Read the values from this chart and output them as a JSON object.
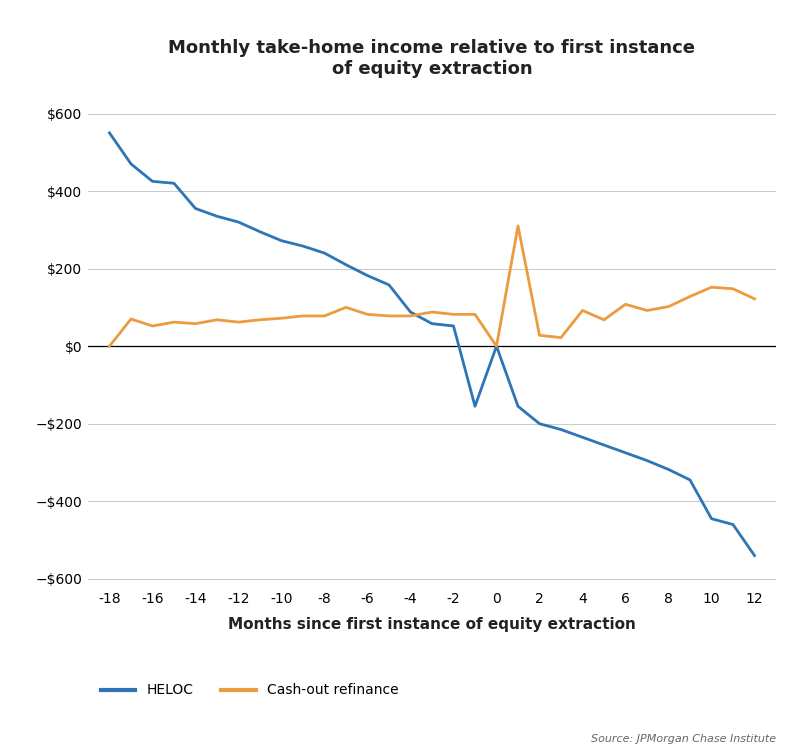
{
  "title": "Monthly take-home income relative to first instance\nof equity extraction",
  "xlabel": "Months since first instance of equity extraction",
  "heloc_x": [
    -18,
    -17,
    -16,
    -15,
    -14,
    -13,
    -12,
    -11,
    -10,
    -9,
    -8,
    -7,
    -6,
    -5,
    -4,
    -3,
    -2,
    -1,
    0,
    1,
    2,
    3,
    4,
    5,
    6,
    7,
    8,
    9,
    10,
    11,
    12
  ],
  "heloc_y": [
    550,
    470,
    425,
    420,
    355,
    335,
    320,
    295,
    272,
    258,
    240,
    210,
    182,
    158,
    88,
    58,
    52,
    -155,
    0,
    -155,
    -200,
    -215,
    -235,
    -255,
    -275,
    -295,
    -318,
    -345,
    -445,
    -460,
    -540
  ],
  "cashout_x": [
    -18,
    -17,
    -16,
    -15,
    -14,
    -13,
    -12,
    -11,
    -10,
    -9,
    -8,
    -7,
    -6,
    -5,
    -4,
    -3,
    -2,
    -1,
    0,
    1,
    2,
    3,
    4,
    5,
    6,
    7,
    8,
    9,
    10,
    11,
    12
  ],
  "cashout_y": [
    0,
    70,
    52,
    62,
    58,
    68,
    62,
    68,
    72,
    78,
    78,
    100,
    82,
    78,
    78,
    88,
    82,
    82,
    0,
    310,
    28,
    22,
    92,
    68,
    108,
    92,
    102,
    128,
    152,
    148,
    122
  ],
  "heloc_color": "#2e75b6",
  "cashout_color": "#ed9b3f",
  "background_color": "#ffffff",
  "grid_color": "#cccccc",
  "ylim": [
    -620,
    660
  ],
  "xlim": [
    -19,
    13
  ],
  "yticks": [
    -600,
    -400,
    -200,
    0,
    200,
    400,
    600
  ],
  "xticks": [
    -18,
    -16,
    -14,
    -12,
    -10,
    -8,
    -6,
    -4,
    -2,
    0,
    2,
    4,
    6,
    8,
    10,
    12
  ],
  "title_fontsize": 13,
  "axis_label_fontsize": 11,
  "tick_fontsize": 10,
  "legend_fontsize": 10,
  "source_text": "Source: JPMorgan Chase Institute",
  "heloc_label": "HELOC",
  "cashout_label": "Cash-out refinance",
  "line_width": 2.0
}
